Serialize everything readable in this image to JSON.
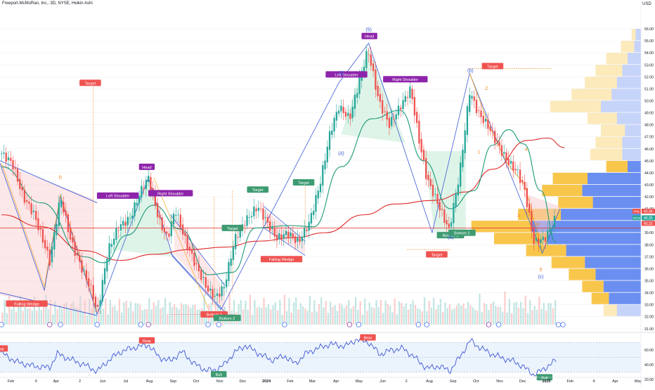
{
  "header": {
    "title": "Freeport-McMoRan, Inc., 3D, NYSE, Heikin Ashi",
    "currency": "USD"
  },
  "colors": {
    "up": "#26a69a",
    "down": "#ef5350",
    "ma_fast": "#1b9a77",
    "ma_slow": "#e02828",
    "wedge_fill": "#f8c9cf",
    "wedge_line": "#3b5bd6",
    "vp_up": "#5b83f0",
    "vp_down": "#f8b81f",
    "rsi": "#3f57d4",
    "label_purple": "#8e24aa",
    "label_red": "#ef5350",
    "label_green": "#3e9b71"
  },
  "chart_data": [
    {
      "type": "candlestick",
      "title": "",
      "price_axis": {
        "ticks": [
          "56.00",
          "55.00",
          "54.00",
          "53.00",
          "52.00",
          "51.00",
          "50.00",
          "49.00",
          "48.00",
          "47.00",
          "46.00",
          "45.00",
          "44.00",
          "43.00",
          "42.00",
          "41.00",
          "40.00",
          "39.00",
          "38.00",
          "37.00",
          "36.00",
          "35.00",
          "34.00",
          "33.00",
          "32.00",
          "31.00"
        ],
        "range": [
          30.5,
          56.6
        ]
      },
      "time_axis": {
        "ticks": [
          "Feb",
          "6",
          "Apr",
          "2",
          "Jun",
          "Jul",
          "Aug",
          "Sep",
          "Oct",
          "Nov",
          "Dec",
          "2024",
          "Feb",
          "Mar",
          "Apr",
          "May",
          "Jun",
          "2",
          "Aug",
          "Sep",
          "Oct",
          "Nov",
          "Dec",
          "2025",
          "Feb",
          "4",
          "Apr",
          "May"
        ],
        "range": [
          "2023-01-25",
          "2025-05-12"
        ]
      },
      "price_labels": [
        {
          "tag": "Pre",
          "value": "40.36"
        },
        {
          "tag": "FCX",
          "value": "40.25"
        },
        {
          "tag": "",
          "value": "40.22"
        }
      ],
      "series": [
        {
          "name": "FCX",
          "points": [
            [
              "2023-01-27",
              45.6
            ],
            [
              "2023-02-10",
              44.8
            ],
            [
              "2023-02-24",
              42.0
            ],
            [
              "2023-03-10",
              40.6
            ],
            [
              "2023-03-24",
              38.0
            ],
            [
              "2023-03-31",
              36.6
            ],
            [
              "2023-04-14",
              42.0
            ],
            [
              "2023-04-28",
              38.2
            ],
            [
              "2023-05-12",
              36.0
            ],
            [
              "2023-05-26",
              34.0
            ],
            [
              "2023-06-01",
              32.2
            ],
            [
              "2023-06-15",
              37.5
            ],
            [
              "2023-06-29",
              39.5
            ],
            [
              "2023-07-14",
              40.2
            ],
            [
              "2023-07-28",
              42.5
            ],
            [
              "2023-08-07",
              43.6
            ],
            [
              "2023-08-21",
              40.0
            ],
            [
              "2023-09-01",
              38.5
            ],
            [
              "2023-09-11",
              41.0
            ],
            [
              "2023-09-25",
              38.2
            ],
            [
              "2023-10-10",
              36.0
            ],
            [
              "2023-10-24",
              34.2
            ],
            [
              "2023-11-03",
              33.6
            ],
            [
              "2023-11-14",
              34.5
            ],
            [
              "2023-11-28",
              38.5
            ],
            [
              "2023-12-12",
              40.0
            ],
            [
              "2023-12-28",
              41.2
            ],
            [
              "2024-01-08",
              40.0
            ],
            [
              "2024-01-22",
              38.5
            ],
            [
              "2024-02-05",
              39.0
            ],
            [
              "2024-02-19",
              38.2
            ],
            [
              "2024-03-04",
              39.8
            ],
            [
              "2024-03-18",
              43.0
            ],
            [
              "2024-04-01",
              47.5
            ],
            [
              "2024-04-12",
              49.5
            ],
            [
              "2024-04-26",
              48.5
            ],
            [
              "2024-05-08",
              51.5
            ],
            [
              "2024-05-20",
              54.3
            ],
            [
              "2024-06-03",
              50.0
            ],
            [
              "2024-06-17",
              48.0
            ],
            [
              "2024-07-01",
              49.5
            ],
            [
              "2024-07-15",
              51.0
            ],
            [
              "2024-07-25",
              47.0
            ],
            [
              "2024-08-05",
              43.5
            ],
            [
              "2024-08-19",
              41.5
            ],
            [
              "2024-09-03",
              39.2
            ],
            [
              "2024-09-17",
              44.0
            ],
            [
              "2024-09-30",
              50.8
            ],
            [
              "2024-10-11",
              49.0
            ],
            [
              "2024-10-25",
              47.8
            ],
            [
              "2024-11-06",
              46.3
            ],
            [
              "2024-11-18",
              45.0
            ],
            [
              "2024-12-02",
              44.0
            ],
            [
              "2024-12-11",
              42.5
            ],
            [
              "2024-12-23",
              38.2
            ],
            [
              "2025-01-06",
              38.5
            ],
            [
              "2025-01-21",
              40.3
            ]
          ]
        },
        {
          "name": "MA fast",
          "points": [
            [
              "2023-01-27",
              44.5
            ],
            [
              "2023-03-20",
              41.5
            ],
            [
              "2023-05-15",
              37.0
            ],
            [
              "2023-06-10",
              36.5
            ],
            [
              "2023-07-10",
              38.8
            ],
            [
              "2023-08-14",
              41.3
            ],
            [
              "2023-09-18",
              39.3
            ],
            [
              "2023-10-25",
              35.5
            ],
            [
              "2023-11-25",
              35.7
            ],
            [
              "2023-12-25",
              39.4
            ],
            [
              "2024-02-08",
              39.6
            ],
            [
              "2024-03-10",
              39.5
            ],
            [
              "2024-04-15",
              44.5
            ],
            [
              "2024-05-25",
              48.5
            ],
            [
              "2024-07-01",
              49.2
            ],
            [
              "2024-08-01",
              45.0
            ],
            [
              "2024-09-05",
              41.0
            ],
            [
              "2024-10-05",
              42.5
            ],
            [
              "2024-10-30",
              46.3
            ],
            [
              "2024-11-20",
              47.6
            ],
            [
              "2024-12-10",
              46.4
            ],
            [
              "2025-01-01",
              42.5
            ],
            [
              "2025-01-21",
              38.2
            ]
          ]
        },
        {
          "name": "MA slow",
          "points": [
            [
              "2023-01-27",
              40.5
            ],
            [
              "2023-03-20",
              39.5
            ],
            [
              "2023-05-15",
              37.5
            ],
            [
              "2023-07-01",
              36.7
            ],
            [
              "2023-08-14",
              37.2
            ],
            [
              "2023-10-01",
              37.6
            ],
            [
              "2023-11-15",
              37.8
            ],
            [
              "2023-12-28",
              38.3
            ],
            [
              "2024-02-15",
              38.6
            ],
            [
              "2024-03-25",
              39.0
            ],
            [
              "2024-05-15",
              40.5
            ],
            [
              "2024-06-25",
              41.4
            ],
            [
              "2024-08-15",
              41.7
            ],
            [
              "2024-09-25",
              42.4
            ],
            [
              "2024-10-30",
              44.3
            ],
            [
              "2024-12-15",
              46.7
            ],
            [
              "2025-01-10",
              46.9
            ],
            [
              "2025-02-01",
              46.1
            ]
          ]
        }
      ],
      "annotations": [
        {
          "text": "Falling Wedge",
          "style": "red"
        },
        {
          "text": "Left Shoulder",
          "style": "purple"
        },
        {
          "text": "Head",
          "style": "purple"
        },
        {
          "text": "Right Shoulder",
          "style": "purple"
        },
        {
          "text": "Target",
          "style": "red"
        },
        {
          "text": "Target",
          "style": "green"
        },
        {
          "text": "Target",
          "style": "green"
        },
        {
          "text": "Target",
          "style": "green"
        },
        {
          "text": "Target",
          "style": "red"
        },
        {
          "text": "Target",
          "style": "red"
        },
        {
          "text": "Bottom 1",
          "style": "red"
        },
        {
          "text": "Bottom 2",
          "style": "green"
        },
        {
          "text": "Falling Wedge",
          "style": "red"
        },
        {
          "text": "Left Shoulder",
          "style": "purple"
        },
        {
          "text": "Head",
          "style": "purple"
        },
        {
          "text": "Right Shoulder",
          "style": "purple"
        },
        {
          "text": "Bottom 1",
          "style": "green"
        },
        {
          "text": "Bottom 2",
          "style": "green"
        }
      ],
      "wave_labels": [
        "(5)",
        "(3)",
        "(4)",
        "(a)",
        "(b)",
        "(c)",
        "b",
        "1",
        "2",
        "3",
        "4",
        "5",
        "a"
      ]
    },
    {
      "type": "line",
      "name": "RSI",
      "y_ticks": [
        "60.00",
        "40.00",
        "20.00"
      ],
      "ylim": [
        20,
        80
      ],
      "band": [
        30,
        70
      ],
      "labels": [
        "Bear",
        "Bear",
        "Bear",
        "Bull",
        "Bull"
      ],
      "points": [
        [
          "2023-01-27",
          56
        ],
        [
          "2023-02-15",
          44
        ],
        [
          "2023-03-10",
          38
        ],
        [
          "2023-03-31",
          36
        ],
        [
          "2023-04-10",
          55
        ],
        [
          "2023-04-25",
          48
        ],
        [
          "2023-05-15",
          40
        ],
        [
          "2023-06-01",
          31
        ],
        [
          "2023-06-15",
          45
        ],
        [
          "2023-06-29",
          56
        ],
        [
          "2023-07-14",
          62
        ],
        [
          "2023-08-07",
          67
        ],
        [
          "2023-08-21",
          50
        ],
        [
          "2023-09-05",
          45
        ],
        [
          "2023-09-20",
          58
        ],
        [
          "2023-10-05",
          42
        ],
        [
          "2023-10-20",
          33
        ],
        [
          "2023-11-01",
          32
        ],
        [
          "2023-11-14",
          40
        ],
        [
          "2023-11-28",
          57
        ],
        [
          "2023-12-12",
          66
        ],
        [
          "2023-12-28",
          56
        ],
        [
          "2024-01-15",
          46
        ],
        [
          "2024-02-01",
          52
        ],
        [
          "2024-02-15",
          41
        ],
        [
          "2024-03-01",
          56
        ],
        [
          "2024-03-15",
          62
        ],
        [
          "2024-04-01",
          68
        ],
        [
          "2024-04-20",
          65
        ],
        [
          "2024-05-05",
          74
        ],
        [
          "2024-05-20",
          71
        ],
        [
          "2024-06-05",
          54
        ],
        [
          "2024-06-20",
          60
        ],
        [
          "2024-07-05",
          62
        ],
        [
          "2024-07-20",
          50
        ],
        [
          "2024-08-05",
          35
        ],
        [
          "2024-08-20",
          38
        ],
        [
          "2024-09-05",
          32
        ],
        [
          "2024-09-20",
          55
        ],
        [
          "2024-10-01",
          73
        ],
        [
          "2024-10-12",
          64
        ],
        [
          "2024-10-28",
          55
        ],
        [
          "2024-11-12",
          49
        ],
        [
          "2024-11-28",
          44
        ],
        [
          "2024-12-11",
          36
        ],
        [
          "2024-12-23",
          26
        ],
        [
          "2025-01-06",
          35
        ],
        [
          "2025-01-21",
          46
        ]
      ]
    },
    {
      "type": "bar",
      "name": "Volume",
      "note": "volume histogram in lower price pane; relative heights 0-1",
      "values": [
        0.45,
        0.5,
        0.35,
        0.6,
        0.4,
        0.55,
        0.3,
        0.5,
        0.62,
        0.38,
        0.45,
        0.52,
        0.33,
        0.48,
        0.57,
        0.4,
        0.5,
        0.36,
        0.44,
        0.66,
        0.4,
        0.52,
        0.31,
        0.47,
        0.55,
        0.39,
        0.5,
        0.43,
        0.6,
        0.35,
        0.49,
        0.54,
        0.37,
        0.45,
        0.58,
        0.41,
        0.48,
        0.33,
        0.52,
        0.46
      ]
    },
    {
      "type": "bar",
      "name": "Volume Profile",
      "note": "horizontal volume-by-price bars anchored at the right edge",
      "rows": [
        {
          "price": 55.5,
          "up": 0.03,
          "down": 0.04
        },
        {
          "price": 54.5,
          "up": 0.1,
          "down": 0.05
        },
        {
          "price": 53.5,
          "up": 0.16,
          "down": 0.1
        },
        {
          "price": 52.5,
          "up": 0.2,
          "down": 0.14
        },
        {
          "price": 51.5,
          "up": 0.24,
          "down": 0.18
        },
        {
          "price": 50.5,
          "up": 0.3,
          "down": 0.22
        },
        {
          "price": 49.5,
          "up": 0.38,
          "down": 0.3
        },
        {
          "price": 48.5,
          "up": 0.22,
          "down": 0.18
        },
        {
          "price": 47.5,
          "up": 0.18,
          "down": 0.12
        },
        {
          "price": 46.5,
          "up": 0.2,
          "down": 0.14
        },
        {
          "price": 45.5,
          "up": 0.24,
          "down": 0.14
        },
        {
          "price": 44.5,
          "up": 0.16,
          "down": 0.1
        },
        {
          "price": 43.5,
          "up": 0.26,
          "down": 0.4
        },
        {
          "price": 42.5,
          "up": 0.3,
          "down": 0.44
        },
        {
          "price": 41.5,
          "up": 0.26,
          "down": 0.36
        },
        {
          "price": 40.5,
          "up": 0.32,
          "down": 0.6
        },
        {
          "price": 39.5,
          "up": 0.45,
          "down": 0.82
        },
        {
          "price": 38.5,
          "up": 0.4,
          "down": 0.7
        },
        {
          "price": 37.5,
          "up": 0.3,
          "down": 0.56
        },
        {
          "price": 36.5,
          "up": 0.25,
          "down": 0.42
        },
        {
          "price": 35.5,
          "up": 0.2,
          "down": 0.34
        },
        {
          "price": 34.5,
          "up": 0.16,
          "down": 0.28
        },
        {
          "price": 33.5,
          "up": 0.13,
          "down": 0.24
        },
        {
          "price": 32.5,
          "up": 0.1,
          "down": 0.18
        }
      ]
    }
  ]
}
